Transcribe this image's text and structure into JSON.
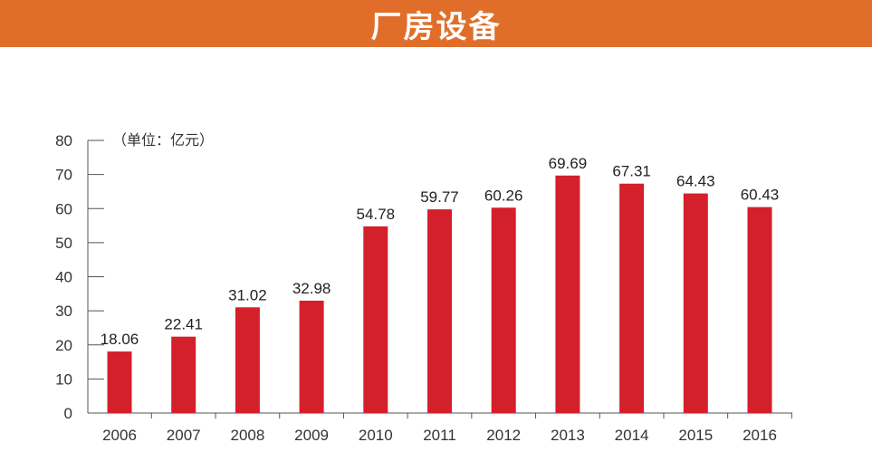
{
  "header": {
    "title": "厂房设备"
  },
  "chart_data": {
    "type": "bar",
    "title": "厂房设备",
    "unit_label": "（单位：亿元）",
    "categories": [
      "2006",
      "2007",
      "2008",
      "2009",
      "2010",
      "2011",
      "2012",
      "2013",
      "2014",
      "2015",
      "2016"
    ],
    "values": [
      18.06,
      22.41,
      31.02,
      32.98,
      54.78,
      59.77,
      60.26,
      69.69,
      67.31,
      64.43,
      60.43
    ],
    "value_labels": [
      "18.06",
      "22.41",
      "31.02",
      "32.98",
      "54.78",
      "59.77",
      "60.26",
      "69.69",
      "67.31",
      "64.43",
      "60.43"
    ],
    "yticks": [
      "0",
      "10",
      "20",
      "30",
      "40",
      "50",
      "60",
      "70",
      "80"
    ],
    "ylim": [
      0,
      80
    ],
    "xlabel": "",
    "ylabel": "",
    "grid": false,
    "colors": {
      "bar": "#d3202b",
      "axis": "#555555",
      "banner": "#e06e2a"
    }
  }
}
